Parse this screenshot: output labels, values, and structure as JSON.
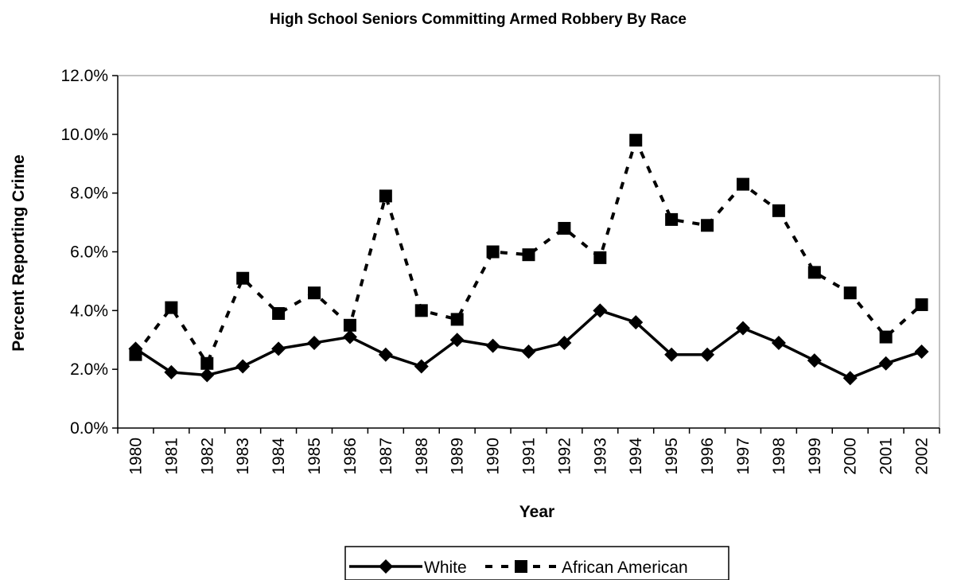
{
  "chart_data": {
    "type": "line",
    "title": "High School Seniors Committing Armed Robbery By Race",
    "xlabel": "Year",
    "ylabel": "Percent Reporting Crime",
    "categories": [
      "1980",
      "1981",
      "1982",
      "1983",
      "1984",
      "1985",
      "1986",
      "1987",
      "1988",
      "1989",
      "1990",
      "1991",
      "1992",
      "1993",
      "1994",
      "1995",
      "1996",
      "1997",
      "1998",
      "1999",
      "2000",
      "2001",
      "2002"
    ],
    "ylim": [
      0,
      12
    ],
    "yticks": [
      "0.0%",
      "2.0%",
      "4.0%",
      "6.0%",
      "8.0%",
      "10.0%",
      "12.0%"
    ],
    "grid": false,
    "legend_position": "bottom",
    "series": [
      {
        "name": "White",
        "marker": "diamond",
        "line": "solid",
        "color": "#000000",
        "values": [
          2.7,
          1.9,
          1.8,
          2.1,
          2.7,
          2.9,
          3.1,
          2.5,
          2.1,
          3.0,
          2.8,
          2.6,
          2.9,
          4.0,
          3.6,
          2.5,
          2.5,
          3.4,
          2.9,
          2.3,
          1.7,
          2.2,
          2.6
        ]
      },
      {
        "name": "African American",
        "marker": "square",
        "line": "dashed",
        "color": "#000000",
        "values": [
          2.5,
          4.1,
          2.2,
          5.1,
          3.9,
          4.6,
          3.5,
          7.9,
          4.0,
          3.7,
          6.0,
          5.9,
          6.8,
          5.8,
          9.8,
          7.1,
          6.9,
          8.3,
          7.4,
          5.3,
          4.6,
          3.1,
          4.2
        ]
      }
    ]
  }
}
